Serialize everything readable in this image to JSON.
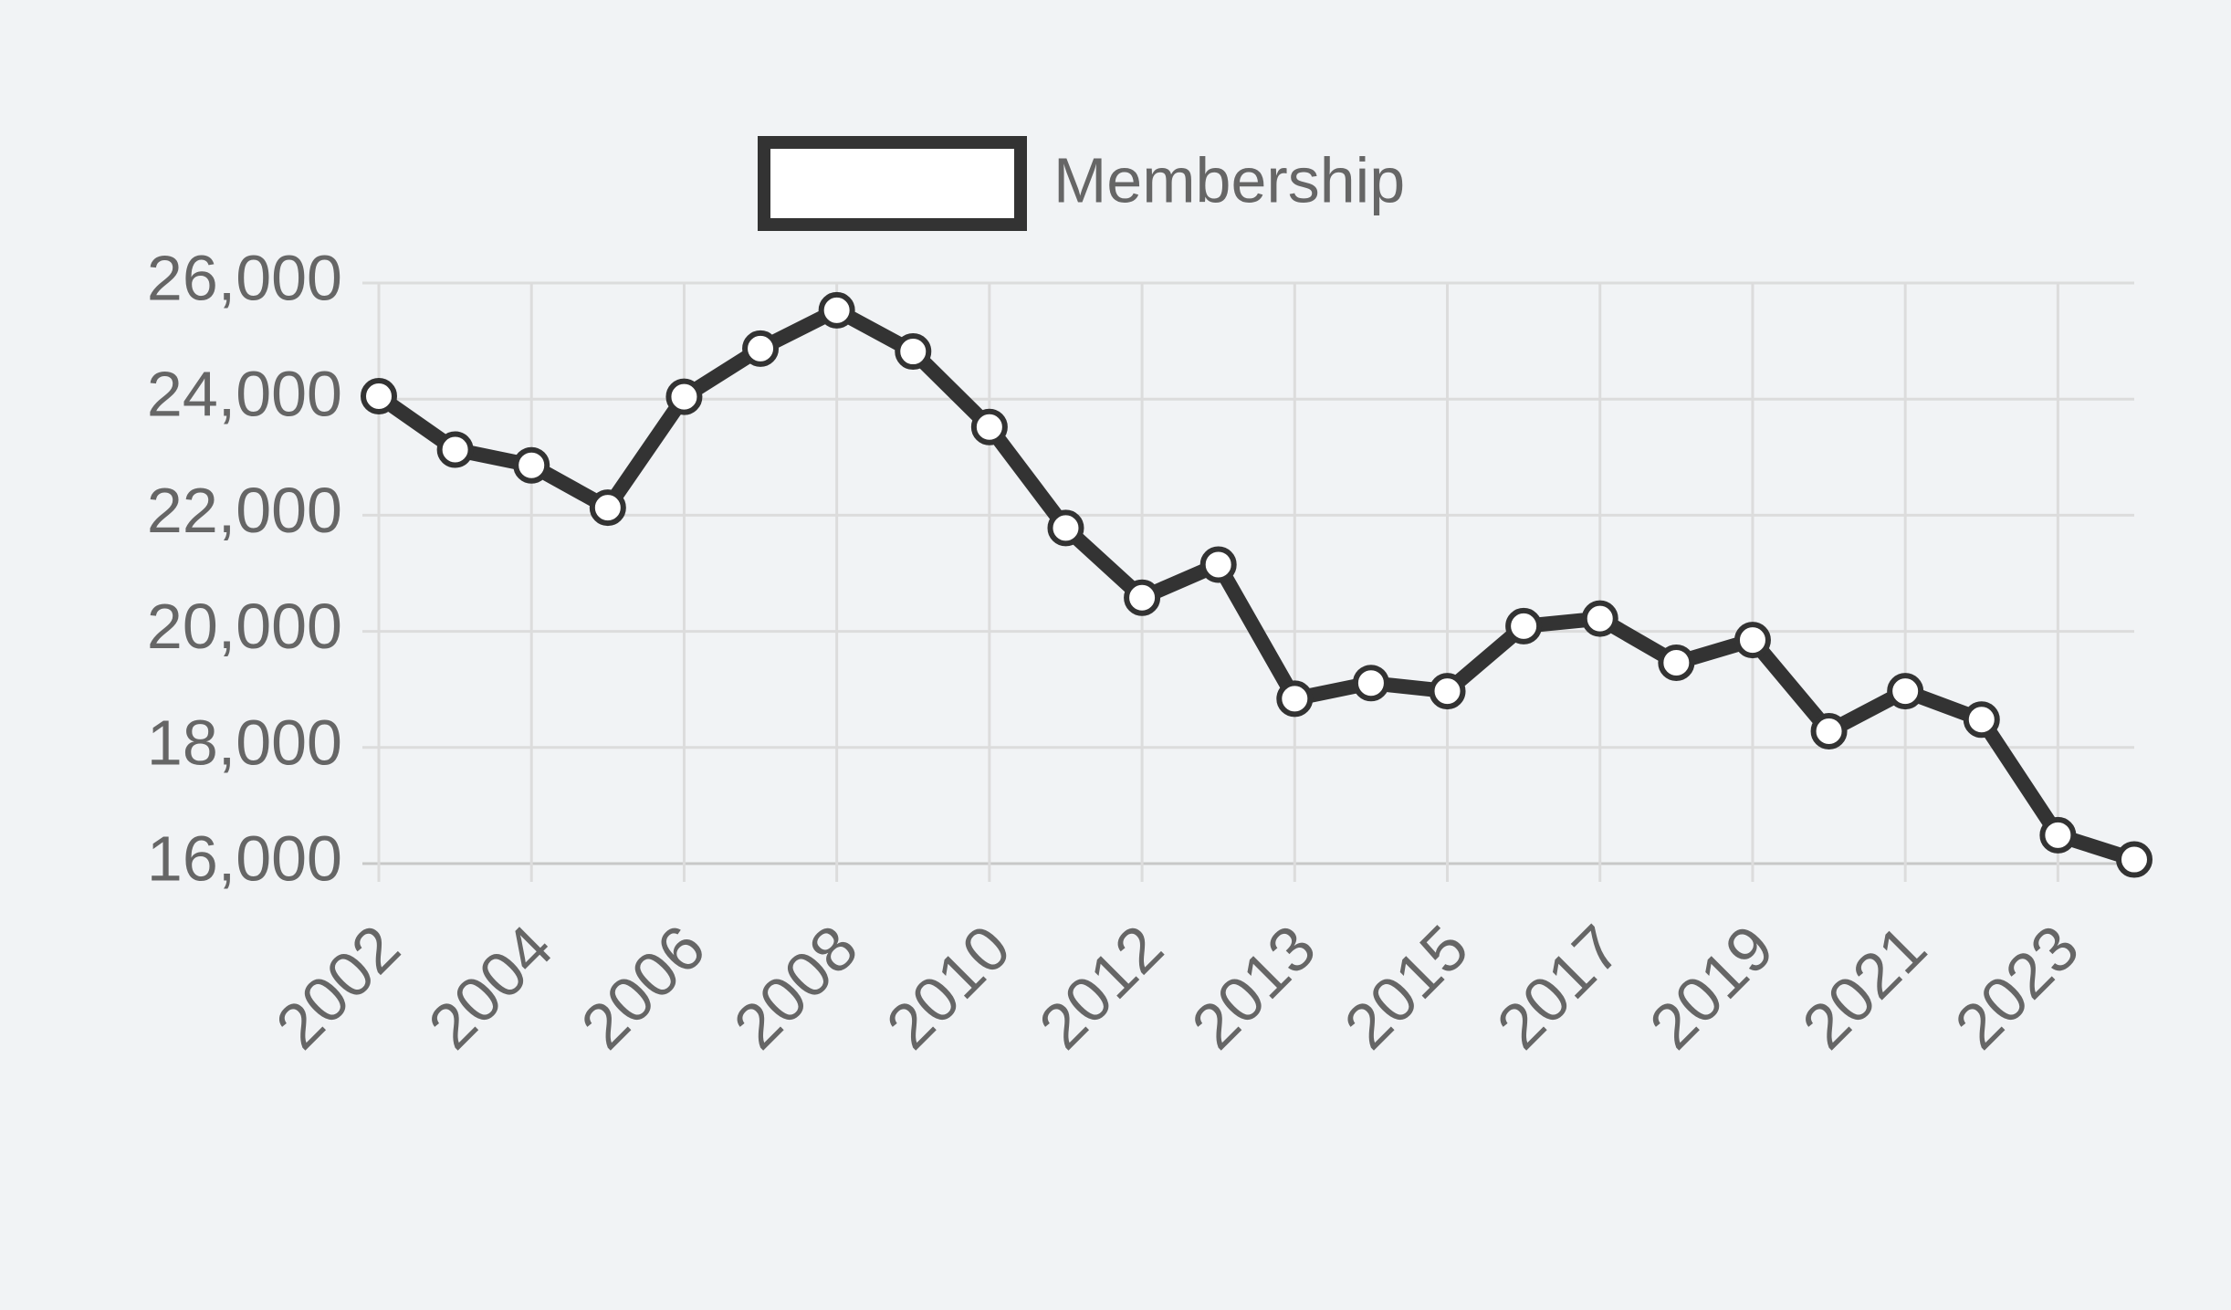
{
  "chart_data": {
    "type": "line",
    "categories": [
      "2002",
      null,
      "2004",
      null,
      "2006",
      null,
      "2008",
      null,
      "2010",
      null,
      "2012",
      null,
      "2013",
      null,
      "2015",
      null,
      "2017",
      null,
      "2019",
      null,
      "2021",
      null,
      "2023",
      null
    ],
    "series": [
      {
        "name": "Membership",
        "color": "#333333",
        "values": [
          24050,
          23130,
          22860,
          22130,
          24040,
          24870,
          25530,
          24820,
          23520,
          21780,
          20580,
          21150,
          18840,
          19110,
          18970,
          20090,
          20220,
          19460,
          19850,
          18280,
          18970,
          18480,
          16490,
          16070
        ]
      }
    ],
    "ylim": [
      16000,
      26000
    ],
    "yticks": [
      {
        "value": 16000,
        "label": "16,000"
      },
      {
        "value": 18000,
        "label": "18,000"
      },
      {
        "value": 20000,
        "label": "20,000"
      },
      {
        "value": 22000,
        "label": "22,000"
      },
      {
        "value": 24000,
        "label": "24,000"
      },
      {
        "value": 26000,
        "label": "26,000"
      }
    ],
    "grid": true
  }
}
